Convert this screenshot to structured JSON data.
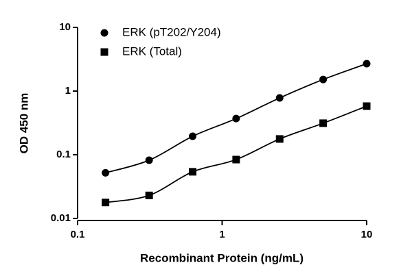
{
  "chart_data": {
    "type": "scatter",
    "x_label": "Recombinant Protein (ng/mL)",
    "y_label": "OD 450 nm",
    "x": [
      0.156,
      0.3125,
      0.625,
      1.25,
      2.5,
      5,
      10
    ],
    "series": [
      {
        "name": "ERK (pT202/Y204)",
        "color": "#000000",
        "marker": "circle",
        "values": [
          0.052,
          0.082,
          0.195,
          0.37,
          0.78,
          1.52,
          2.69
        ]
      },
      {
        "name": "ERK (Total)",
        "color": "#000000",
        "marker": "square",
        "values": [
          0.0178,
          0.023,
          0.054,
          0.084,
          0.177,
          0.313,
          0.58
        ]
      }
    ],
    "xlim": [
      0.1,
      10
    ],
    "ylim": [
      0.01,
      10
    ],
    "xticks": [
      0.1,
      1,
      10
    ],
    "yticks": [
      0.01,
      0.1,
      1,
      10
    ],
    "xscale": "log",
    "yscale": "log",
    "fit_line": true,
    "legend": "upper left"
  }
}
